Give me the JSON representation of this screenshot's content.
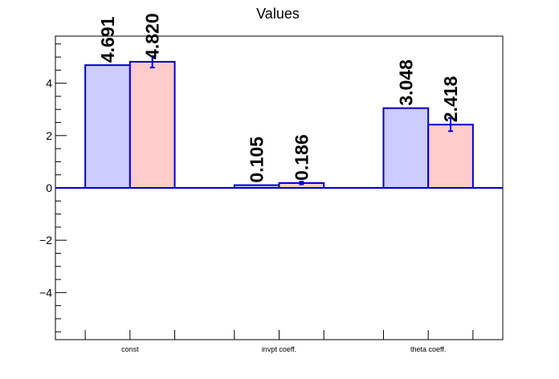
{
  "chart_data": {
    "type": "bar",
    "title": "Values",
    "categories": [
      "const",
      "invpt coeff.",
      "theta coeff."
    ],
    "series": [
      {
        "values": [
          4.691,
          0.105,
          3.048
        ],
        "errors": [
          0,
          0,
          0
        ],
        "labels": [
          "4.691",
          "0.105",
          "3.048"
        ],
        "fill": "#ccccff",
        "stroke": "#0000cc"
      },
      {
        "values": [
          4.82,
          0.186,
          2.418
        ],
        "errors": [
          0.22,
          0.05,
          0.25
        ],
        "labels": [
          "4.820",
          "0.186",
          "2.418"
        ],
        "fill": "#ffcccc",
        "stroke": "#0000cc"
      }
    ],
    "ylim": [
      -5.8,
      5.8
    ],
    "yticks": [
      -4,
      -2,
      0,
      2,
      4
    ],
    "ytick_labels": [
      "−4",
      "−2",
      "0",
      "2",
      "4"
    ],
    "grid": false,
    "axis_color": "#000000"
  }
}
